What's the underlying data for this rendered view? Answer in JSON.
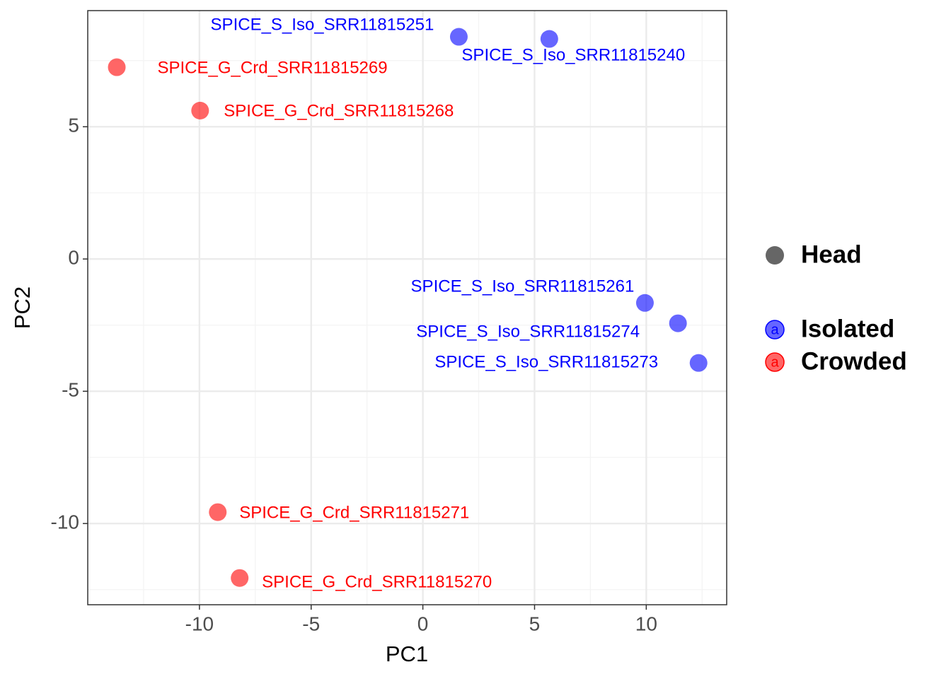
{
  "chart_data": {
    "type": "scatter",
    "x_label": "PC1",
    "y_label": "PC2",
    "xlim": [
      -15.0,
      13.6
    ],
    "ylim": [
      -13.07,
      9.39
    ],
    "xticks": [
      -10,
      -5,
      0,
      5,
      10
    ],
    "yticks": [
      -10,
      -5,
      0,
      5
    ],
    "grid": true,
    "alpha": 0.6,
    "legend": "right",
    "shape_legend": "Head",
    "series": [
      {
        "name": "Isolated",
        "color": "#0000ff",
        "x": [
          1.61,
          5.66,
          9.94,
          11.42,
          12.34
        ],
        "values": [
          8.4,
          8.32,
          -1.66,
          -2.43,
          -3.93
        ],
        "labels": [
          "SPICE_S_Iso_SRR11815251",
          "SPICE_S_Iso_SRR11815240",
          "SPICE_S_Iso_SRR11815261",
          "SPICE_S_Iso_SRR11815274",
          "SPICE_S_Iso_SRR11815273"
        ]
      },
      {
        "name": "Crowded",
        "color": "#ff0000",
        "x": [
          -13.7,
          -9.97,
          -9.18,
          -8.2
        ],
        "values": [
          7.25,
          5.61,
          -9.57,
          -12.06
        ],
        "labels": [
          "SPICE_G_Crd_SRR11815269",
          "SPICE_G_Crd_SRR11815268",
          "SPICE_G_Crd_SRR11815271",
          "SPICE_G_Crd_SRR11815270"
        ]
      }
    ]
  }
}
